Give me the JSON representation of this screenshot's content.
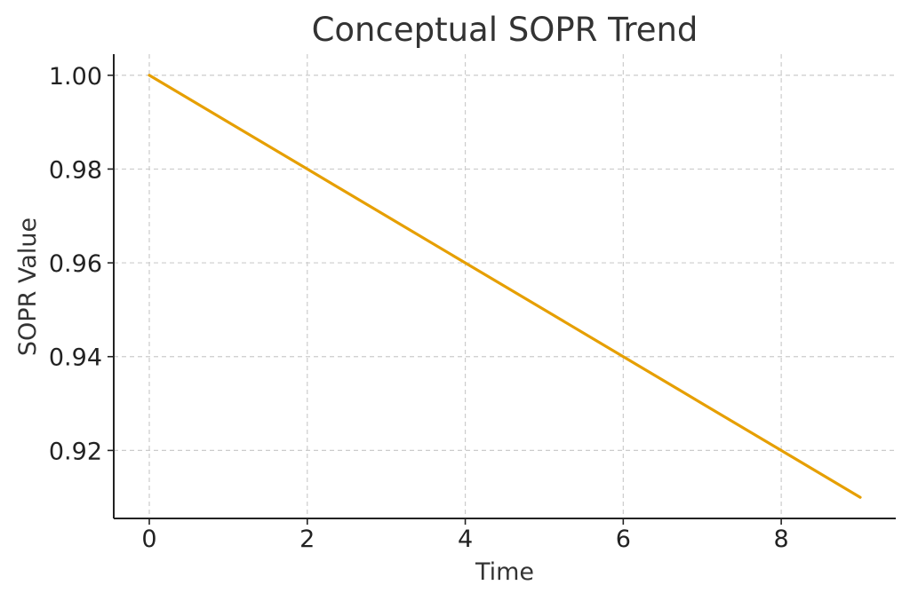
{
  "chart_data": {
    "type": "line",
    "title": "Conceptual SOPR Trend",
    "xlabel": "Time",
    "ylabel": "SOPR Value",
    "xlim": [
      -0.45,
      9.45
    ],
    "ylim": [
      0.9055,
      1.0045
    ],
    "xticks": [
      0,
      2,
      4,
      6,
      8
    ],
    "xtick_labels": [
      "0",
      "2",
      "4",
      "6",
      "8"
    ],
    "yticks": [
      0.92,
      0.94,
      0.96,
      0.98,
      1.0
    ],
    "ytick_labels": [
      "0.92",
      "0.94",
      "0.96",
      "0.98",
      "1.00"
    ],
    "grid": true,
    "legend": false,
    "series": [
      {
        "color": "#E69F00",
        "x": [
          0,
          1,
          2,
          3,
          4,
          5,
          6,
          7,
          8,
          9
        ],
        "y": [
          1.0,
          0.99,
          0.98,
          0.97,
          0.96,
          0.95,
          0.94,
          0.93,
          0.92,
          0.91
        ]
      }
    ]
  }
}
